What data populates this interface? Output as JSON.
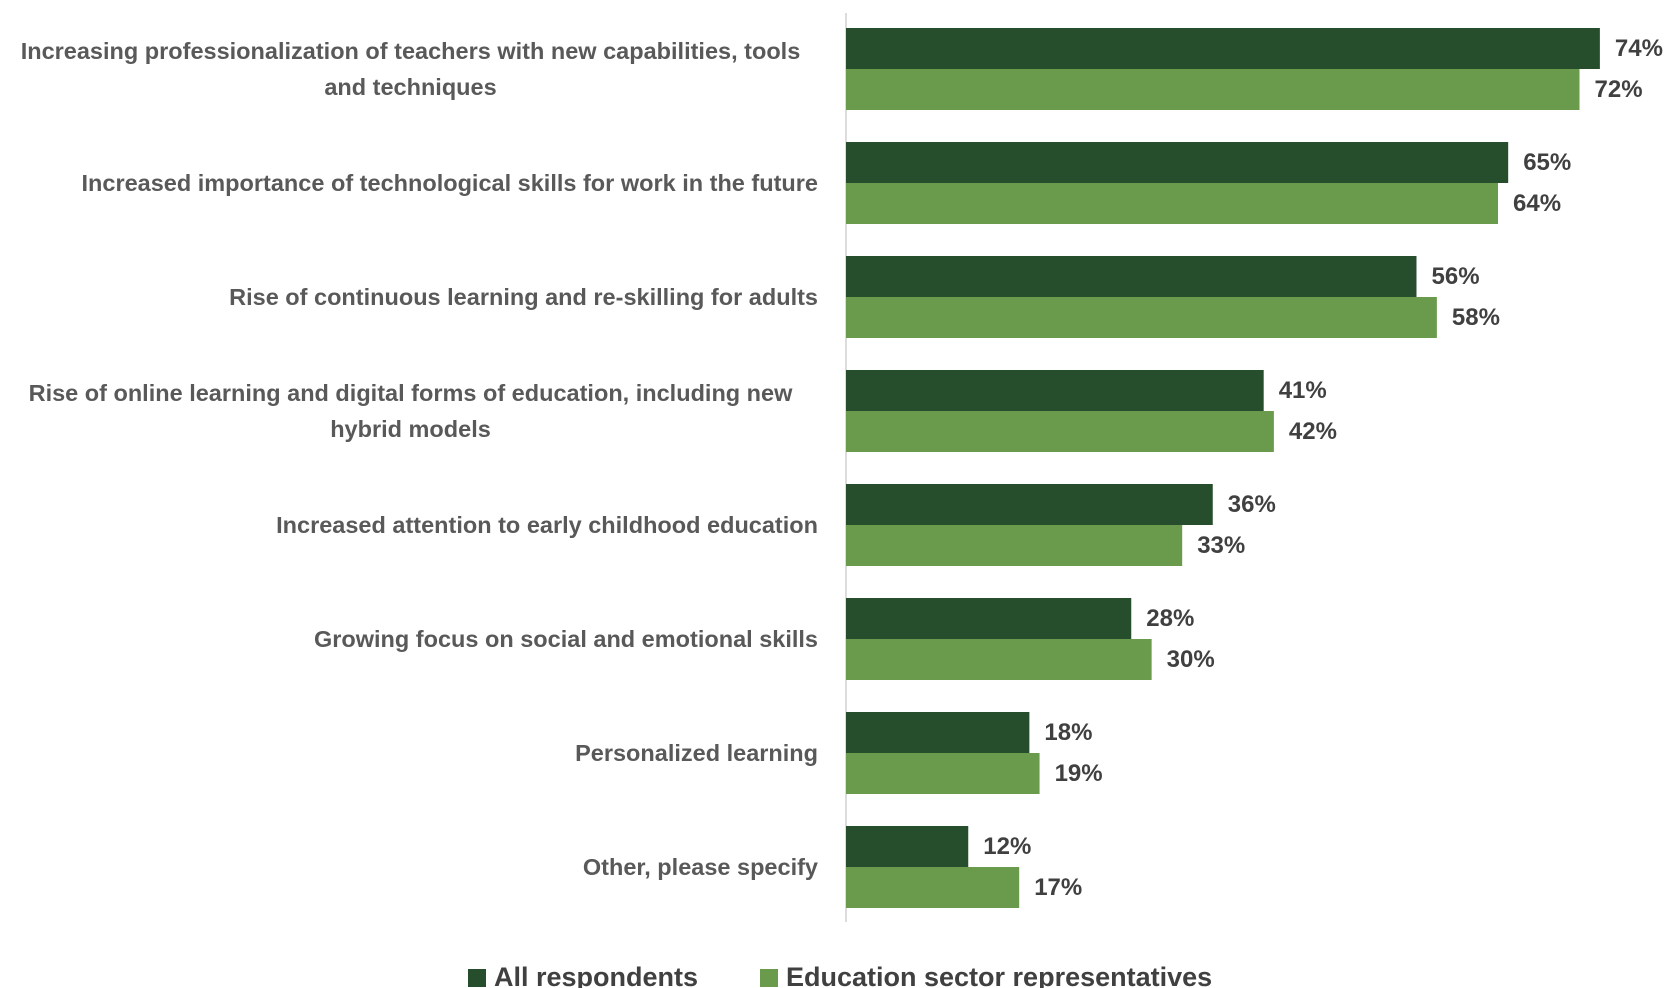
{
  "chart_data": {
    "type": "bar",
    "orientation": "horizontal",
    "categories": [
      "Increasing professionalization of teachers with new capabilities, tools and techniques",
      "Increased importance of technological skills for work in the future",
      "Rise of continuous learning and re-skilling for adults",
      "Rise of online learning and digital forms of education, including new hybrid models",
      "Increased attention to early childhood education",
      "Growing focus on social and emotional skills",
      "Personalized learning",
      "Other, please specify"
    ],
    "series": [
      {
        "name": "All respondents",
        "color": "#264d2c",
        "values": [
          74,
          65,
          56,
          41,
          36,
          28,
          18,
          12
        ],
        "value_labels": [
          "74%",
          "65%",
          "56%",
          "41%",
          "36%",
          "28%",
          "18%",
          "12%"
        ]
      },
      {
        "name": "Education sector representatives",
        "color": "#6a9a4b",
        "values": [
          72,
          64,
          58,
          42,
          33,
          30,
          19,
          17
        ],
        "value_labels": [
          "72%",
          "64%",
          "58%",
          "42%",
          "33%",
          "30%",
          "19%",
          "17%"
        ]
      }
    ],
    "xlim": [
      0,
      80
    ],
    "legend": "bottom"
  }
}
